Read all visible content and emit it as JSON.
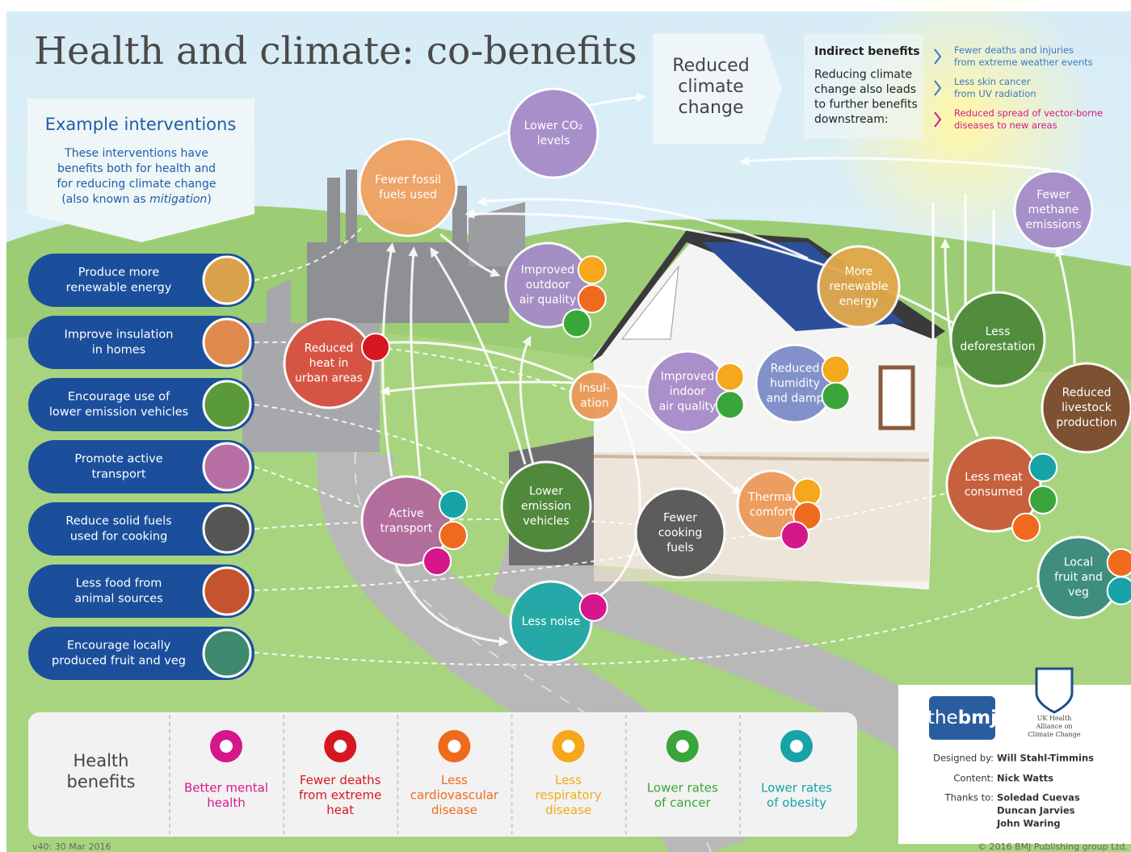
{
  "title": "Health and climate: co-benefits",
  "interventions": {
    "heading": "Example interventions",
    "description": [
      "These interventions have",
      "benefits both for health and",
      "for reducing climate change"
    ],
    "description_last": {
      "before": "(also known as ",
      "emphasis": "mitigation",
      "after": ")"
    },
    "items": [
      [
        "Produce more",
        "renewable energy"
      ],
      [
        "Improve insulation",
        "in homes"
      ],
      [
        "Encourage use of",
        "lower emission vehicles"
      ],
      [
        "Promote active",
        "transport"
      ],
      [
        "Reduce solid fuels",
        "used for cooking"
      ],
      [
        "Less food from",
        "animal sources"
      ],
      [
        "Encourage locally",
        "produced fruit and veg"
      ]
    ]
  },
  "climate": {
    "label": [
      "Reduced",
      "climate",
      "change"
    ]
  },
  "indirect": {
    "heading": "Indirect benefits",
    "text": [
      "Reducing climate",
      "change also leads",
      "to further benefits",
      "downstream:"
    ],
    "items": [
      [
        "Fewer deaths and injuries",
        "from extreme weather events"
      ],
      [
        "Less skin cancer",
        "from UV radiation"
      ],
      [
        "Reduced spread of vector-borne",
        "diseases to new areas"
      ]
    ]
  },
  "nodes": [
    [
      "Fewer fossil",
      "fuels used"
    ],
    [
      "Lower CO₂",
      "levels"
    ],
    [
      "Improved",
      "outdoor",
      "air quality"
    ],
    [
      "Reduced",
      "heat in",
      "urban areas"
    ],
    [
      "Insul-",
      "ation"
    ],
    [
      "Improved",
      "indoor",
      "air quality"
    ],
    [
      "Reduced",
      "humidity",
      "and damp"
    ],
    [
      "More",
      "renewable",
      "energy"
    ],
    [
      "Fewer",
      "methane",
      "emissions"
    ],
    [
      "Less",
      "deforestation"
    ],
    [
      "Reduced",
      "livestock",
      "production"
    ],
    [
      "Less meat",
      "consumed"
    ],
    [
      "Local",
      "fruit and",
      "veg"
    ],
    [
      "Active",
      "transport"
    ],
    [
      "Lower",
      "emission",
      "vehicles"
    ],
    [
      "Fewer",
      "cooking",
      "fuels"
    ],
    [
      "Thermal",
      "comfort"
    ],
    [
      "Less noise"
    ]
  ],
  "health": {
    "heading": [
      "Health",
      "benefits"
    ],
    "items": [
      [
        "Better mental",
        "health"
      ],
      [
        "Fewer deaths",
        "from extreme",
        "heat"
      ],
      [
        "Less",
        "cardiovascular",
        "disease"
      ],
      [
        "Less",
        "respiratory",
        "disease"
      ],
      [
        "Lower rates",
        "of cancer"
      ],
      [
        "Lower rates",
        "of obesity"
      ]
    ]
  },
  "credits": {
    "logo": {
      "prefix": "the",
      "name": "bmj"
    },
    "alliance": [
      "UK Health",
      "Alliance on",
      "Climate Change"
    ],
    "designed_by": {
      "label": "Designed by:",
      "name": "Will Stahl-Timmins"
    },
    "content": {
      "label": "Content:",
      "name": "Nick Watts"
    },
    "thanks": {
      "label": "Thanks to:",
      "names": [
        "Soledad Cuevas",
        "Duncan Jarvies",
        "John Waring"
      ]
    }
  },
  "version": "v40: 30 Mar 2016",
  "copyright": "© 2016 BMJ Publishing group Ltd."
}
